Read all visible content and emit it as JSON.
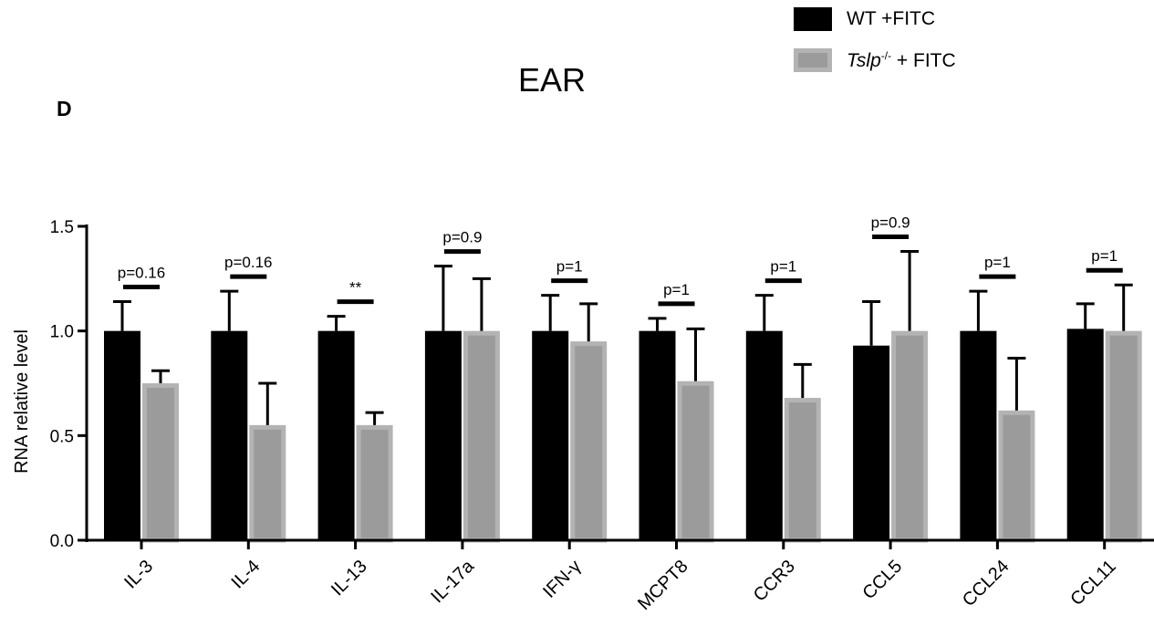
{
  "panel_label": "D",
  "chart_data": {
    "type": "bar",
    "title": "EAR",
    "xlabel": "",
    "ylabel": "RNA relative level",
    "ylim": [
      0,
      1.5
    ],
    "yticks": [
      "0.0",
      "0.5",
      "1.0",
      "1.5"
    ],
    "grid": false,
    "legend_position": "top-right",
    "categories": [
      "IL-3",
      "IL-4",
      "IL-13",
      "IL-17a",
      "IFN-γ",
      "MCPT8",
      "CCR3",
      "CCL5",
      "CCL24",
      "CCL11"
    ],
    "series": [
      {
        "name": "WT +FITC",
        "color": "#000000",
        "values": [
          1.0,
          1.0,
          1.0,
          1.0,
          1.0,
          1.0,
          1.0,
          0.93,
          1.0,
          1.01
        ],
        "errors": [
          0.14,
          0.19,
          0.07,
          0.31,
          0.17,
          0.06,
          0.17,
          0.21,
          0.19,
          0.12
        ]
      },
      {
        "name_main": "Tslp",
        "name_sup": "-/-",
        "name_rest": " + FITC",
        "color": "#9b9b9b",
        "values": [
          0.75,
          0.55,
          0.55,
          1.0,
          0.95,
          0.76,
          0.68,
          1.0,
          0.62,
          1.0
        ],
        "errors": [
          0.06,
          0.2,
          0.06,
          0.25,
          0.18,
          0.25,
          0.16,
          0.38,
          0.25,
          0.22
        ]
      }
    ],
    "annotations": [
      "p=0.16",
      "p=0.16",
      "**",
      "p=0.9",
      "p=1",
      "p=1",
      "p=1",
      "p=0.9",
      "p=1",
      "p=1"
    ]
  }
}
